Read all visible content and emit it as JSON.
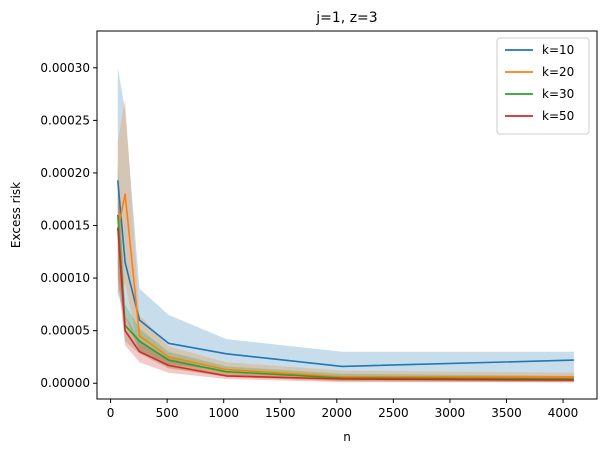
{
  "chart_data": {
    "type": "line",
    "title": "j=1, z=3",
    "xlabel": "n",
    "ylabel": "Excess risk",
    "xlim": [
      -120,
      4300
    ],
    "ylim": [
      -1.5e-05,
      0.000335
    ],
    "xticks": [
      0,
      500,
      1000,
      1500,
      2000,
      2500,
      3000,
      3500,
      4000
    ],
    "xtick_labels": [
      "0",
      "500",
      "1000",
      "1500",
      "2000",
      "2500",
      "3000",
      "3500",
      "4000"
    ],
    "yticks": [
      0,
      5e-05,
      0.0001,
      0.00015,
      0.0002,
      0.00025,
      0.0003
    ],
    "ytick_labels": [
      "0.00000",
      "0.00005",
      "0.00010",
      "0.00015",
      "0.00020",
      "0.00025",
      "0.00030"
    ],
    "grid": false,
    "legend_position": "top-right",
    "x": [
      64,
      128,
      256,
      512,
      1024,
      2048,
      4096
    ],
    "series": [
      {
        "name": "k=10",
        "color": "#1f77b4",
        "values": [
          0.000193,
          0.000115,
          6e-05,
          3.8e-05,
          2.8e-05,
          1.6e-05,
          2.2e-05
        ],
        "lower": [
          8.5e-05,
          6.5e-05,
          3e-05,
          1.8e-05,
          1.2e-05,
          5e-06,
          4e-06
        ],
        "upper": [
          0.0003,
          0.00026,
          9e-05,
          6.5e-05,
          4.2e-05,
          3e-05,
          3e-05
        ]
      },
      {
        "name": "k=20",
        "color": "#ff7f0e",
        "values": [
          0.000145,
          0.00018,
          4.5e-05,
          2.5e-05,
          1.3e-05,
          6e-06,
          6e-06
        ],
        "lower": [
          8.5e-05,
          9.5e-05,
          3e-05,
          1.5e-05,
          6e-06,
          2e-06,
          1e-06
        ],
        "upper": [
          0.00023,
          0.00027,
          6.5e-05,
          3.5e-05,
          2e-05,
          1.2e-05,
          1e-05
        ]
      },
      {
        "name": "k=30",
        "color": "#2ca02c",
        "values": [
          0.00016,
          5.5e-05,
          4e-05,
          2.2e-05,
          1.1e-05,
          5e-06,
          4e-06
        ],
        "lower": [
          0.00011,
          4e-05,
          2.8e-05,
          1.4e-05,
          6e-06,
          2e-06,
          1e-06
        ],
        "upper": [
          0.00021,
          7.5e-05,
          5.2e-05,
          3e-05,
          1.6e-05,
          9e-06,
          7e-06
        ]
      },
      {
        "name": "k=50",
        "color": "#d62728",
        "values": [
          0.000148,
          5e-05,
          3e-05,
          1.7e-05,
          7e-06,
          4e-06,
          3e-06
        ],
        "lower": [
          0.0001,
          3.6e-05,
          2e-05,
          1e-05,
          4e-06,
          1e-06,
          1e-06
        ],
        "upper": [
          0.0002,
          6.5e-05,
          4e-05,
          2.4e-05,
          1.1e-05,
          7e-06,
          6e-06
        ]
      }
    ]
  }
}
